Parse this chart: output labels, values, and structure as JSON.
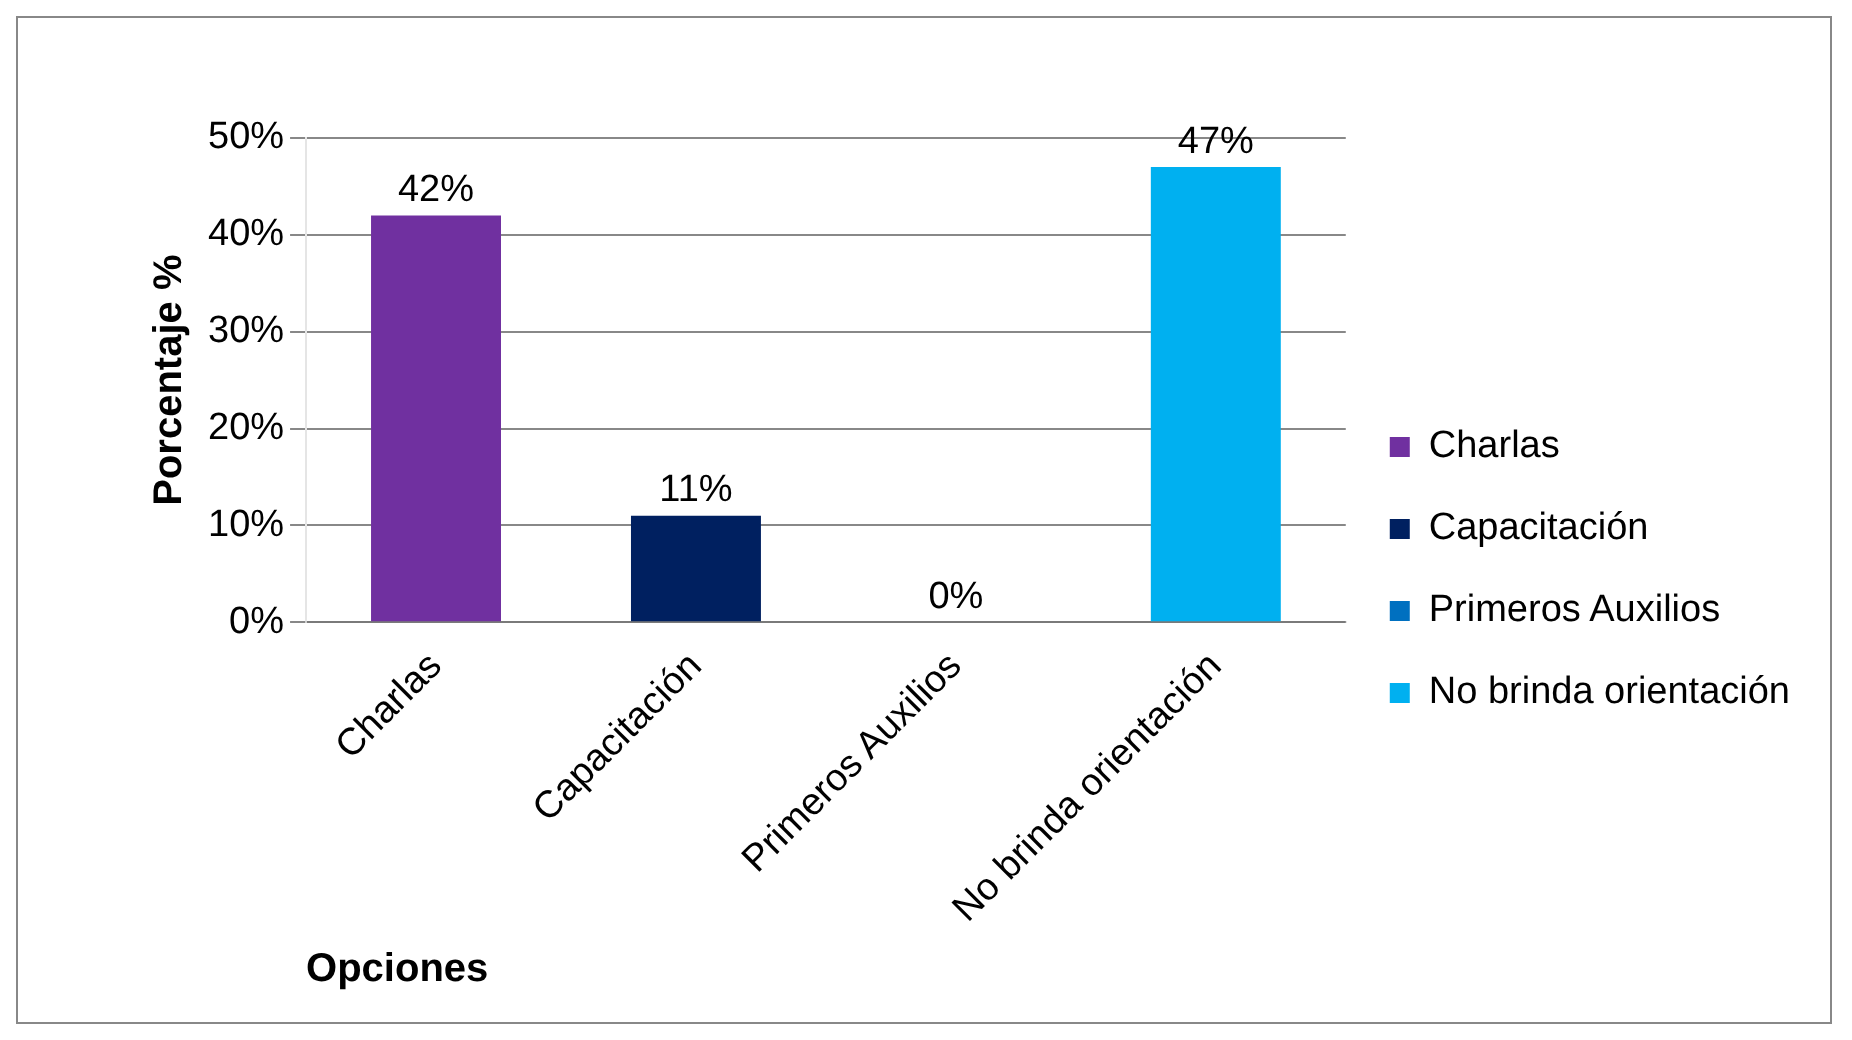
{
  "chart_data": {
    "type": "bar",
    "xlabel": "Opciones",
    "ylabel": "Porcentaje %",
    "categories": [
      "Charlas",
      "Capacitación",
      "Primeros Auxilios",
      "No brinda orientación"
    ],
    "series": [
      {
        "name": "Charlas",
        "color": "#7030a0",
        "values": [
          42,
          null,
          null,
          null
        ],
        "value_labels": [
          "42%",
          null,
          null,
          null
        ]
      },
      {
        "name": "Capacitación",
        "color": "#002060",
        "values": [
          null,
          11,
          null,
          null
        ],
        "value_labels": [
          null,
          "11%",
          null,
          null
        ]
      },
      {
        "name": "Primeros Auxilios",
        "color": "#0070c0",
        "values": [
          null,
          null,
          0,
          null
        ],
        "value_labels": [
          null,
          null,
          "0%",
          null
        ]
      },
      {
        "name": "No brinda orientación",
        "color": "#00b0f0",
        "values": [
          null,
          null,
          null,
          47
        ],
        "value_labels": [
          null,
          null,
          null,
          "47%"
        ]
      }
    ],
    "ylim": [
      0,
      50
    ],
    "yticks": [
      {
        "value": 0,
        "label": "0%"
      },
      {
        "value": 10,
        "label": "10%"
      },
      {
        "value": 20,
        "label": "20%"
      },
      {
        "value": 30,
        "label": "30%"
      },
      {
        "value": 40,
        "label": "40%"
      },
      {
        "value": 50,
        "label": "50%"
      }
    ],
    "grid": "y",
    "legend": "right"
  }
}
